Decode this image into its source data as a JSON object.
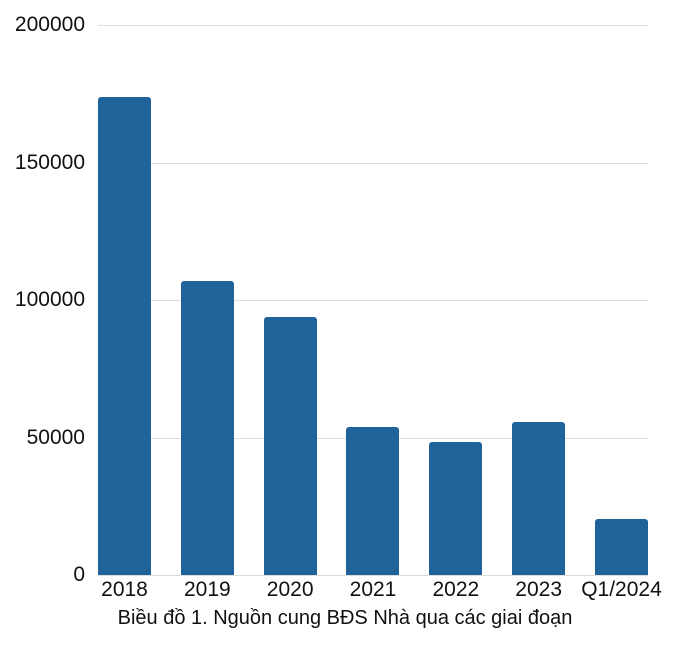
{
  "chart_data": {
    "type": "bar",
    "title": "Biều đồ 1. Nguồn cung BĐS Nhà qua các giai đoạn",
    "categories": [
      "2018",
      "2019",
      "2020",
      "2021",
      "2022",
      "2023",
      "Q1/2024"
    ],
    "values": [
      174000,
      107000,
      94000,
      54000,
      48500,
      55500,
      20500
    ],
    "yticks": [
      0,
      50000,
      100000,
      150000,
      200000
    ],
    "ylim": [
      0,
      200000
    ],
    "xlabel": "",
    "ylabel": "",
    "grid": true,
    "legend_position": "none",
    "bar_color": "#20639B",
    "gridline_color": "#dcdcdc",
    "text_color": "#111111",
    "background_color": "#ffffff"
  }
}
